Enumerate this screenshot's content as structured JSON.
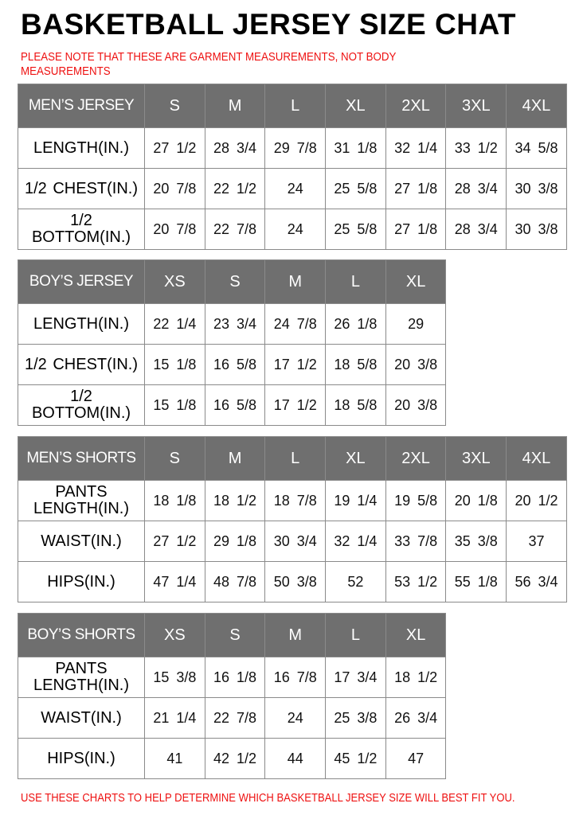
{
  "title": "BASKETBALL JERSEY SIZE CHAT",
  "note": "PLEASE NOTE THAT THESE ARE GARMENT MEASUREMENTS, NOT BODY MEASUREMENTS",
  "footer": "USE THESE CHARTS TO HELP DETERMINE WHICH BASKETBALL JERSEY SIZE WILL BEST FIT YOU.",
  "colors": {
    "header_bg": "#6f6f6f",
    "note_text": "#ee1111",
    "border": "#8a8a8a"
  },
  "tables": [
    {
      "header": "MEN’S JERSEY",
      "sizes": [
        "S",
        "M",
        "L",
        "XL",
        "2XL",
        "3XL",
        "4XL"
      ],
      "rows": [
        {
          "label": "LENGTH(IN.)",
          "values": [
            "27 1/2",
            "28 3/4",
            "29 7/8",
            "31 1/8",
            "32 1/4",
            "33 1/2",
            "34 5/8"
          ]
        },
        {
          "label": "1/2 CHEST(IN.)",
          "values": [
            "20 7/8",
            "22 1/2",
            "24",
            "25 5/8",
            "27 1/8",
            "28 3/4",
            "30 3/8"
          ]
        },
        {
          "label": "1/2 BOTTOM(IN.)",
          "values": [
            "20 7/8",
            "22 7/8",
            "24",
            "25 5/8",
            "27 1/8",
            "28 3/4",
            "30 3/8"
          ]
        }
      ]
    },
    {
      "header": "BOY’S JERSEY",
      "sizes": [
        "XS",
        "S",
        "M",
        "L",
        "XL"
      ],
      "rows": [
        {
          "label": "LENGTH(IN.)",
          "values": [
            "22 1/4",
            "23 3/4",
            "24 7/8",
            "26 1/8",
            "29"
          ]
        },
        {
          "label": "1/2 CHEST(IN.)",
          "values": [
            "15 1/8",
            "16 5/8",
            "17 1/2",
            "18 5/8",
            "20 3/8"
          ]
        },
        {
          "label": "1/2 BOTTOM(IN.)",
          "values": [
            "15 1/8",
            "16 5/8",
            "17 1/2",
            "18 5/8",
            "20 3/8"
          ]
        }
      ]
    },
    {
      "header": "MEN’S SHORTS",
      "sizes": [
        "S",
        "M",
        "L",
        "XL",
        "2XL",
        "3XL",
        "4XL"
      ],
      "rows": [
        {
          "label": "PANTS LENGTH(IN.)",
          "values": [
            "18 1/8",
            "18 1/2",
            "18 7/8",
            "19 1/4",
            "19 5/8",
            "20 1/8",
            "20 1/2"
          ]
        },
        {
          "label": "WAIST(IN.)",
          "values": [
            "27 1/2",
            "29 1/8",
            "30 3/4",
            "32 1/4",
            "33 7/8",
            "35 3/8",
            "37"
          ]
        },
        {
          "label": "HIPS(IN.)",
          "values": [
            "47 1/4",
            "48 7/8",
            "50 3/8",
            "52",
            "53 1/2",
            "55 1/8",
            "56 3/4"
          ]
        }
      ]
    },
    {
      "header": "BOY’S SHORTS",
      "sizes": [
        "XS",
        "S",
        "M",
        "L",
        "XL"
      ],
      "rows": [
        {
          "label": "PANTS LENGTH(IN.)",
          "values": [
            "15 3/8",
            "16 1/8",
            "16 7/8",
            "17 3/4",
            "18 1/2"
          ]
        },
        {
          "label": "WAIST(IN.)",
          "values": [
            "21 1/4",
            "22 7/8",
            "24",
            "25 3/8",
            "26 3/4"
          ]
        },
        {
          "label": "HIPS(IN.)",
          "values": [
            "41",
            "42 1/2",
            "44",
            "45 1/2",
            "47"
          ]
        }
      ]
    }
  ]
}
